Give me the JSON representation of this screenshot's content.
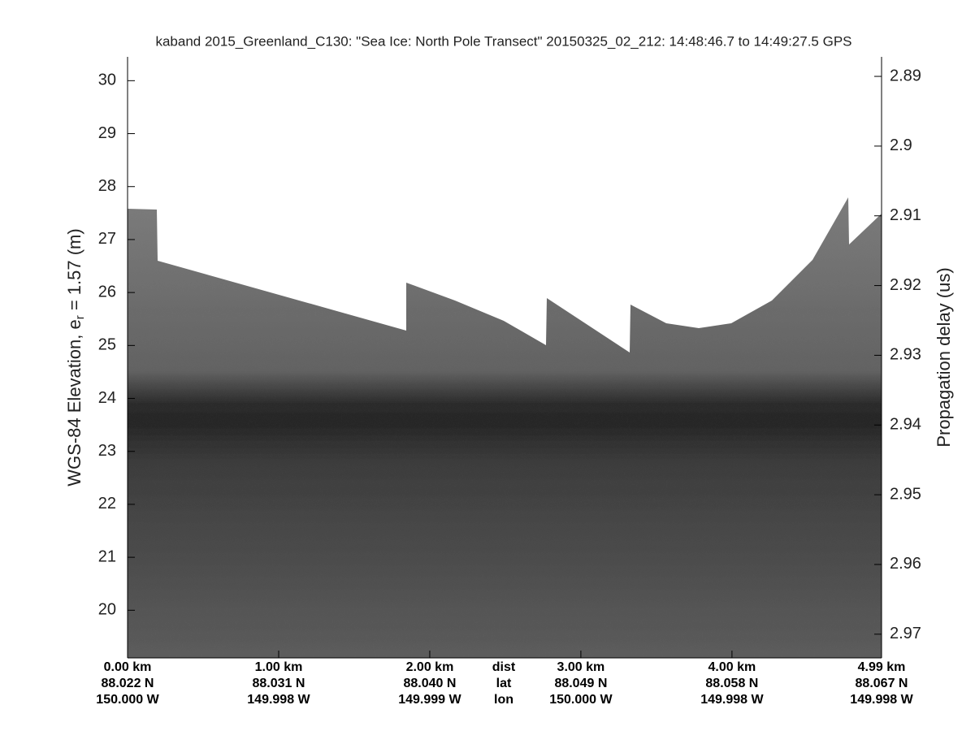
{
  "chart_data": {
    "type": "echogram",
    "title": "kaband 2015_Greenland_C130: \"Sea Ice: North Pole Transect\"  20150325_02_212: 14:48:46.7 to 14:49:27.5 GPS",
    "y_label": {
      "main": "WGS-84 Elevation, e",
      "subscript": "r",
      "rest": " = 1.57 (m)"
    },
    "y2_label": "Propagation delay (us)",
    "ylim": [
      19.1,
      30.45
    ],
    "yticks": [
      20,
      21,
      22,
      23,
      24,
      25,
      26,
      27,
      28,
      29,
      30
    ],
    "y2lim": [
      2.8872,
      2.9734
    ],
    "y2_inverted": true,
    "y2ticks": [
      2.89,
      2.9,
      2.91,
      2.92,
      2.93,
      2.94,
      2.95,
      2.96,
      2.97
    ],
    "xlim": [
      0,
      4.99
    ],
    "xticks": [
      {
        "value": 0,
        "label": "0.00 km"
      },
      {
        "value": 1,
        "label": "1.00 km"
      },
      {
        "value": 2,
        "label": "2.00 km"
      },
      {
        "value": 3,
        "label": "3.00 km"
      },
      {
        "value": 4,
        "label": "4.00 km"
      },
      {
        "value": 4.99,
        "label": "4.99 km"
      }
    ],
    "xtick_lat": [
      "88.022 N",
      "88.031 N",
      "88.040 N",
      "88.049 N",
      "88.058 N",
      "88.067 N"
    ],
    "xtick_lon": [
      "150.000 W",
      "149.998 W",
      "149.999 W",
      "150.000 W",
      "149.998 W",
      "149.998 W"
    ],
    "row_labels": [
      "dist",
      "lat",
      "lon"
    ]
  }
}
